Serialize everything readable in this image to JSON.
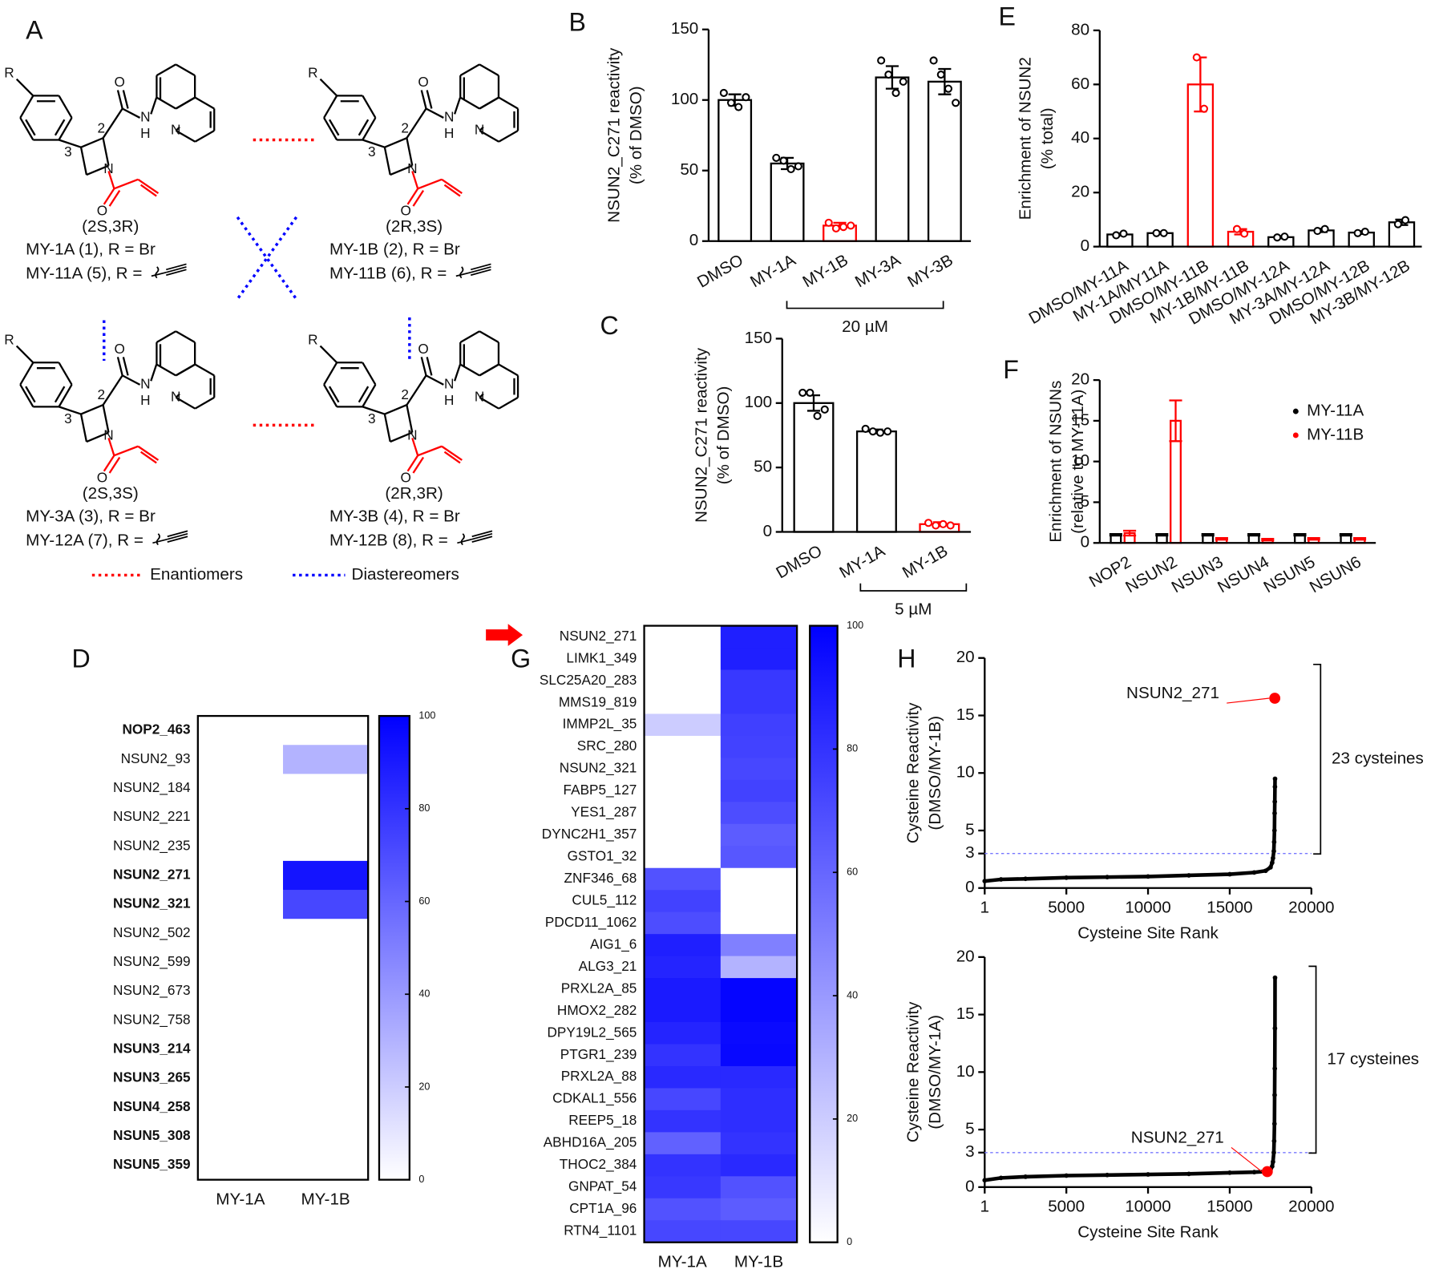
{
  "panel_a": {
    "panel": "A",
    "structures": [
      {
        "stereo": "(2S,3R)",
        "compounds": [
          "MY-1A (1), R = Br",
          "MY-11A (5), R ="
        ],
        "locants": [
          "3",
          "2"
        ],
        "atoms": [
          "R",
          "O",
          "N",
          "H",
          "N",
          "N",
          "O"
        ]
      },
      {
        "stereo": "(2R,3S)",
        "compounds": [
          "MY-1B (2), R = Br",
          "MY-11B (6), R ="
        ],
        "locants": [
          "3",
          "2"
        ],
        "atoms": [
          "R",
          "O",
          "N",
          "H",
          "N",
          "N",
          "O"
        ]
      },
      {
        "stereo": "(2S,3S)",
        "compounds": [
          "MY-3A (3), R = Br",
          "MY-12A (7), R ="
        ],
        "locants": [
          "3",
          "2"
        ],
        "atoms": [
          "R",
          "O",
          "N",
          "H",
          "N",
          "N",
          "O"
        ]
      },
      {
        "stereo": "(2R,3R)",
        "compounds": [
          "MY-3B (4), R = Br",
          "MY-12B (8), R ="
        ],
        "locants": [
          "3",
          "2"
        ],
        "atoms": [
          "R",
          "O",
          "N",
          "H",
          "N",
          "N",
          "O"
        ]
      }
    ],
    "legend": [
      "Enantiomers",
      "Diastereomers"
    ]
  },
  "chart_data": [
    {
      "panel": "B",
      "type": "bar",
      "y_label": [
        "NSUN2_C271 reactivity",
        "(% of DMSO)"
      ],
      "categories": [
        "DMSO",
        "MY-1A",
        "MY-1B",
        "MY-3A",
        "MY-3B"
      ],
      "values": [
        100,
        55,
        11,
        116,
        113
      ],
      "errors": [
        4,
        4,
        2,
        8,
        9
      ],
      "points": [
        [
          105,
          98,
          95,
          102
        ],
        [
          59,
          57,
          51,
          53
        ],
        [
          13,
          9,
          10,
          11
        ],
        [
          128,
          118,
          105,
          113
        ],
        [
          128,
          118,
          108,
          98
        ]
      ],
      "colors": [
        "#000000",
        "#000000",
        "#ff0000",
        "#000000",
        "#000000"
      ],
      "annotation": "20 µM",
      "ylim": [
        0,
        150
      ],
      "yticks": [
        0,
        50,
        100,
        150
      ]
    },
    {
      "panel": "C",
      "type": "bar",
      "y_label": [
        "NSUN2_C271 reactivity",
        "(% of DMSO)"
      ],
      "categories": [
        "DMSO",
        "MY-1A",
        "MY-1B"
      ],
      "values": [
        100,
        78,
        6
      ],
      "errors": [
        6,
        1.5,
        1.5
      ],
      "points": [
        [
          108,
          108,
          90,
          95
        ],
        [
          80,
          78,
          77,
          78
        ],
        [
          7,
          5,
          6,
          5
        ]
      ],
      "colors": [
        "#000000",
        "#000000",
        "#ff0000"
      ],
      "annotation": "5 µM",
      "ylim": [
        0,
        150
      ],
      "yticks": [
        0,
        50,
        100,
        150
      ]
    },
    {
      "panel": "E",
      "type": "bar",
      "y_label": [
        "Enrichment of NSUN2",
        "(% total)"
      ],
      "categories": [
        "DMSO/MY-11A",
        "MY-1A/MY11A",
        "DMSO/MY-11B",
        "MY-1B/MY-11B",
        "DMSO/MY-12A",
        "MY-3A/MY-12A",
        "DMSO/MY-12B",
        "MY-3B/MY-12B"
      ],
      "values": [
        4.5,
        5,
        60,
        5.5,
        3.5,
        6,
        5.2,
        9
      ],
      "errors": [
        0.4,
        0.4,
        10,
        1,
        0.4,
        0.6,
        0.5,
        1
      ],
      "points": [
        [
          4.2,
          4.8
        ],
        [
          5,
          5
        ],
        [
          70,
          51
        ],
        [
          6.5,
          4.8
        ],
        [
          3.4,
          3.7
        ],
        [
          5.8,
          6.5
        ],
        [
          5,
          5.5
        ],
        [
          8.3,
          9.8
        ]
      ],
      "colors": [
        "#000000",
        "#000000",
        "#ff0000",
        "#ff0000",
        "#000000",
        "#000000",
        "#000000",
        "#000000"
      ],
      "ylim": [
        0,
        80
      ],
      "yticks": [
        0,
        20,
        40,
        60,
        80
      ]
    },
    {
      "panel": "F",
      "type": "bar",
      "y_label": [
        "Enrichment of NSUNs",
        "(relative to MY-11A)"
      ],
      "categories": [
        "NOP2",
        "NSUN2",
        "NSUN3",
        "NSUN4",
        "NSUN5",
        "NSUN6"
      ],
      "series": [
        {
          "name": "MY-11A",
          "color": "#000000",
          "values": [
            1,
            1,
            1,
            1,
            1,
            1
          ],
          "errors": [
            0.1,
            0.1,
            0.1,
            0.1,
            0.1,
            0.1
          ]
        },
        {
          "name": "MY-11B",
          "color": "#ff0000",
          "values": [
            1.2,
            15,
            0.5,
            0.4,
            0.5,
            0.5
          ],
          "errors": [
            0.3,
            2.5,
            0.1,
            0.1,
            0.1,
            0.1
          ]
        }
      ],
      "ylim": [
        0,
        20
      ],
      "yticks": [
        0,
        5,
        10,
        15,
        20
      ],
      "legend": "upper right"
    },
    {
      "panel": "D",
      "type": "heatmap",
      "rows": [
        "NOP2_463",
        "NSUN2_93",
        "NSUN2_184",
        "NSUN2_221",
        "NSUN2_235",
        "NSUN2_271",
        "NSUN2_321",
        "NSUN2_502",
        "NSUN2_599",
        "NSUN2_673",
        "NSUN2_758",
        "NSUN3_214",
        "NSUN3_265",
        "NSUN4_258",
        "NSUN5_308",
        "NSUN5_359"
      ],
      "row_colors": [
        "#000000",
        "#ff0000",
        "#ff0000",
        "#ff0000",
        "#ff0000",
        "#ff0000",
        "#ff0000",
        "#ff0000",
        "#ff0000",
        "#ff0000",
        "#ff0000",
        "#000000",
        "#000000",
        "#000000",
        "#000000",
        "#000000"
      ],
      "row_bold": [
        true,
        false,
        false,
        false,
        false,
        true,
        true,
        false,
        false,
        false,
        false,
        true,
        true,
        true,
        true,
        true
      ],
      "columns": [
        "MY-1A",
        "MY-1B"
      ],
      "values": [
        [
          0,
          0
        ],
        [
          0,
          30
        ],
        [
          0,
          0
        ],
        [
          0,
          0
        ],
        [
          0,
          0
        ],
        [
          0,
          92
        ],
        [
          0,
          72
        ],
        [
          0,
          0
        ],
        [
          0,
          0
        ],
        [
          0,
          0
        ],
        [
          0,
          0
        ],
        [
          0,
          0
        ],
        [
          0,
          0
        ],
        [
          0,
          0
        ],
        [
          0,
          0
        ],
        [
          0,
          0
        ]
      ],
      "color_low": "#ffffff",
      "color_high": "#0000ff",
      "clim": [
        0,
        100
      ],
      "colorbar_ticks": [
        0,
        20,
        40,
        60,
        80,
        100
      ]
    },
    {
      "panel": "G",
      "type": "heatmap",
      "rows": [
        "NSUN2_271",
        "LIMK1_349",
        "SLC25A20_283",
        "MMS19_819",
        "IMMP2L_35",
        "SRC_280",
        "NSUN2_321",
        "FABP5_127",
        "YES1_287",
        "DYNC2H1_357",
        "GSTO1_32",
        "ZNF346_68",
        "CUL5_112",
        "PDCD11_1062",
        "AIG1_6",
        "ALG3_21",
        "PRXL2A_85",
        "HMOX2_282",
        "DPY19L2_565",
        "PTGR1_239",
        "PRXL2A_88",
        "CDKAL1_556",
        "REEP5_18",
        "ABHD16A_205",
        "THOC2_384",
        "GNPAT_54",
        "CPT1A_96",
        "RTN4_1101"
      ],
      "columns": [
        "MY-1A",
        "MY-1B"
      ],
      "values": [
        [
          0,
          88
        ],
        [
          0,
          88
        ],
        [
          0,
          78
        ],
        [
          0,
          78
        ],
        [
          20,
          75
        ],
        [
          0,
          74
        ],
        [
          0,
          72
        ],
        [
          0,
          74
        ],
        [
          0,
          70
        ],
        [
          0,
          64
        ],
        [
          0,
          66
        ],
        [
          68,
          0
        ],
        [
          74,
          0
        ],
        [
          70,
          0
        ],
        [
          88,
          50
        ],
        [
          86,
          30
        ],
        [
          90,
          98
        ],
        [
          90,
          98
        ],
        [
          86,
          96
        ],
        [
          80,
          97
        ],
        [
          84,
          84
        ],
        [
          72,
          82
        ],
        [
          80,
          82
        ],
        [
          62,
          80
        ],
        [
          80,
          84
        ],
        [
          78,
          68
        ],
        [
          68,
          64
        ],
        [
          72,
          72
        ]
      ],
      "color_low": "#ffffff",
      "color_high": "#0000ff",
      "clim": [
        0,
        100
      ],
      "colorbar_ticks": [
        0,
        20,
        40,
        60,
        80,
        100
      ]
    },
    {
      "panel": "H",
      "type": "scatter",
      "y_label": [
        "Cysteine Reactivity",
        "(DMSO/MY-1B)"
      ],
      "x_label": "Cysteine Site Rank",
      "x": [
        1,
        1000,
        2500,
        5000,
        7500,
        10000,
        12500,
        15000,
        16500,
        17200,
        17500,
        17600,
        17650,
        17700,
        17720,
        17740,
        17750,
        17760,
        17770,
        17775
      ],
      "values": [
        0.6,
        0.75,
        0.8,
        0.9,
        0.95,
        1.0,
        1.1,
        1.2,
        1.35,
        1.5,
        1.8,
        2.2,
        2.6,
        3.2,
        4,
        5,
        6.5,
        7.5,
        8.8,
        9.5
      ],
      "highlight": {
        "label": "NSUN2_271",
        "x": 17760,
        "y": 16.5
      },
      "threshold": 3,
      "annotation": "23 cysteines",
      "xlim": [
        1,
        20000
      ],
      "xticks": [
        1,
        5000,
        10000,
        15000,
        20000
      ],
      "ylim": [
        0,
        20
      ],
      "yticks": [
        0,
        3,
        5,
        10,
        15,
        20
      ]
    },
    {
      "type": "scatter",
      "y_label": [
        "Cysteine Reactivity",
        "(DMSO/MY-1A)"
      ],
      "x_label": "Cysteine Site Rank",
      "x": [
        1,
        1000,
        2500,
        5000,
        7500,
        10000,
        12500,
        15000,
        16500,
        17200,
        17500,
        17600,
        17650,
        17700,
        17720,
        17740,
        17750,
        17760,
        17770,
        17775
      ],
      "values": [
        0.6,
        0.8,
        0.9,
        1.0,
        1.05,
        1.1,
        1.15,
        1.25,
        1.3,
        1.35,
        1.5,
        1.8,
        2.2,
        3,
        4,
        5.5,
        8,
        10.3,
        13.8,
        18.2
      ],
      "highlight": {
        "label": "NSUN2_271",
        "x": 17300,
        "y": 1.35
      },
      "threshold": 3,
      "annotation": "17 cysteines",
      "xlim": [
        1,
        20000
      ],
      "xticks": [
        1,
        5000,
        10000,
        15000,
        20000
      ],
      "ylim": [
        0,
        20
      ],
      "yticks": [
        0,
        3,
        5,
        10,
        15,
        20
      ]
    }
  ]
}
